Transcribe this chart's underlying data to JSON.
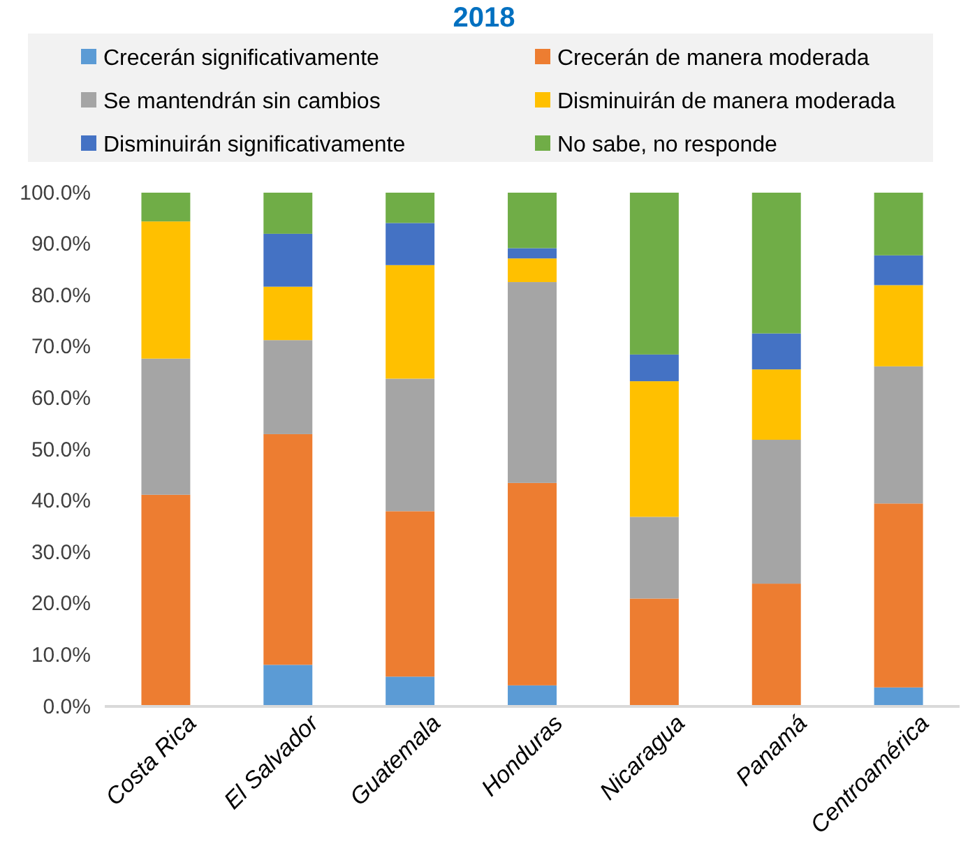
{
  "chart_data": {
    "type": "bar",
    "stacked": true,
    "title": "2018",
    "categories": [
      "Costa Rica",
      "El Salvador",
      "Guatemala",
      "Honduras",
      "Nicaragua",
      "Panamá",
      "Centroamérica"
    ],
    "series": [
      {
        "name": "Crecerán significativamente",
        "color": "#5b9bd5",
        "values": [
          0,
          8.1,
          5.8,
          4.1,
          0,
          0,
          3.7
        ]
      },
      {
        "name": "Crecerán de manera moderada",
        "color": "#ed7d31",
        "values": [
          41.2,
          44.9,
          32.2,
          39.4,
          21.0,
          23.9,
          35.8
        ]
      },
      {
        "name": "Se mantendrán sin cambios",
        "color": "#a5a5a5",
        "values": [
          26.5,
          18.3,
          25.8,
          39.1,
          15.9,
          28.0,
          26.7
        ]
      },
      {
        "name": "Disminuirán de manera moderada",
        "color": "#ffc000",
        "values": [
          26.7,
          10.4,
          22.1,
          4.6,
          26.4,
          13.7,
          15.8
        ]
      },
      {
        "name": "Disminuirán significativamente",
        "color": "#4472c4",
        "values": [
          0,
          10.3,
          8.2,
          2.0,
          5.2,
          7.0,
          5.8
        ]
      },
      {
        "name": "No sabe, no responde",
        "color": "#70ad47",
        "values": [
          5.6,
          8.0,
          5.9,
          10.8,
          31.5,
          27.4,
          12.2
        ]
      }
    ],
    "ylim": [
      0,
      100
    ],
    "yticks": [
      {
        "value": 0,
        "label": "0.0%"
      },
      {
        "value": 10,
        "label": "10.0%"
      },
      {
        "value": 20,
        "label": "20.0%"
      },
      {
        "value": 30,
        "label": "30.0%"
      },
      {
        "value": 40,
        "label": "40.0%"
      },
      {
        "value": 50,
        "label": "50.0%"
      },
      {
        "value": 60,
        "label": "60.0%"
      },
      {
        "value": 70,
        "label": "70.0%"
      },
      {
        "value": 80,
        "label": "80.0%"
      },
      {
        "value": 90,
        "label": "90.0%"
      },
      {
        "value": 100,
        "label": "100.0%"
      }
    ],
    "grid": false,
    "legend": "top"
  }
}
